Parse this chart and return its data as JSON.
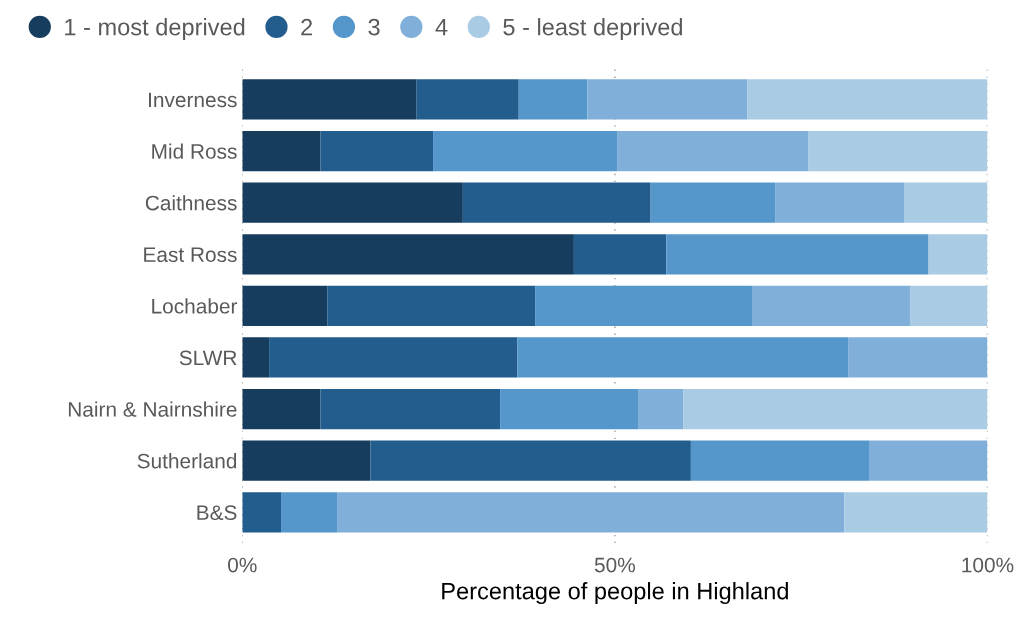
{
  "chart_data": {
    "type": "bar",
    "orientation": "horizontal",
    "stacked": true,
    "xlabel": "Percentage of people in Highland",
    "categories": [
      "Inverness",
      "Mid Ross",
      "Caithness",
      "East Ross",
      "Lochaber",
      "SLWR",
      "Nairn & Nairnshire",
      "Sutherland",
      "B&S"
    ],
    "series": [
      {
        "name": "1 - most deprived",
        "color": "#173d5e",
        "values": [
          23.4,
          10.5,
          29.6,
          44.5,
          11.4,
          3.6,
          10.5,
          17.2,
          0
        ]
      },
      {
        "name": "2",
        "color": "#235d8e",
        "values": [
          13.7,
          15.1,
          25.2,
          12.4,
          27.9,
          33.3,
          24.1,
          43.0,
          5.2
        ]
      },
      {
        "name": "3",
        "color": "#5596cb",
        "values": [
          9.2,
          24.7,
          16.7,
          35.2,
          29.1,
          44.4,
          18.6,
          23.9,
          7.6
        ]
      },
      {
        "name": "4",
        "color": "#80b0d9",
        "values": [
          21.5,
          25.7,
          17.3,
          0,
          21.2,
          18.7,
          6.0,
          15.9,
          68.0
        ]
      },
      {
        "name": "5 - least deprived",
        "color": "#aacbe4",
        "values": [
          32.2,
          24.0,
          11.2,
          7.9,
          10.4,
          0,
          40.8,
          0,
          19.2
        ]
      }
    ],
    "xlim": [
      0,
      100
    ],
    "xticks": [
      {
        "value": 0,
        "label": "0%"
      },
      {
        "value": 50,
        "label": "50%"
      },
      {
        "value": 100,
        "label": "100%"
      }
    ],
    "grid": "x",
    "legend": "top left"
  }
}
